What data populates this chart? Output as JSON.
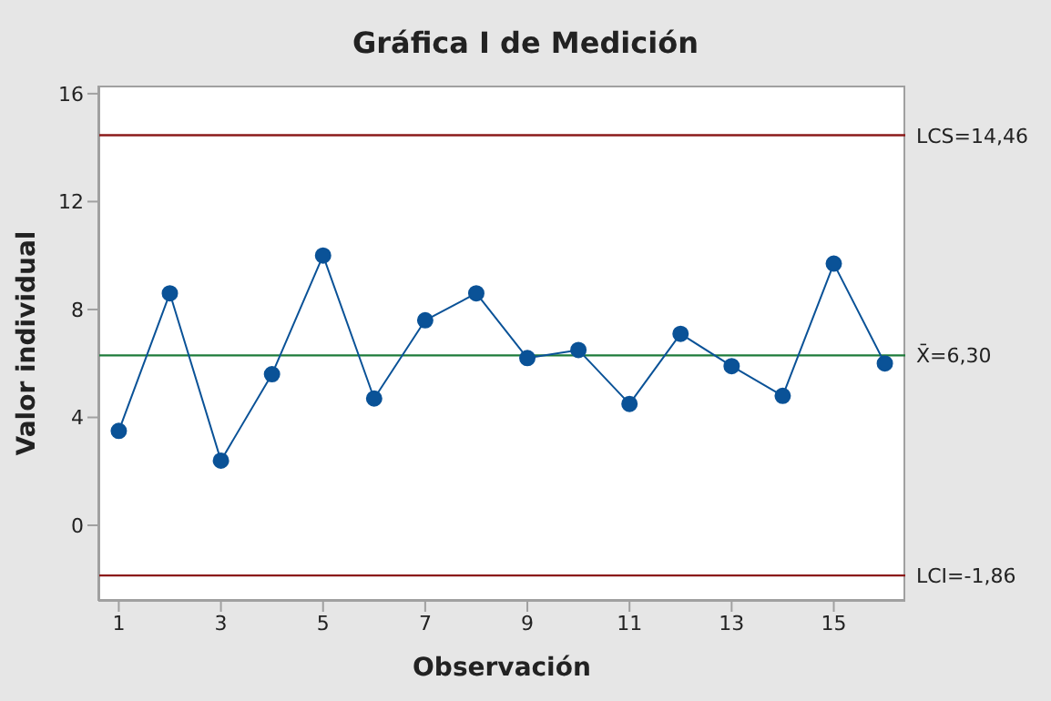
{
  "chart_data": {
    "type": "line",
    "title": "Gráfica I de Medición",
    "xlabel": "Observación",
    "ylabel": "Valor individual",
    "x": [
      1,
      2,
      3,
      4,
      5,
      6,
      7,
      8,
      9,
      10,
      11,
      12,
      13,
      14,
      15,
      16
    ],
    "series": [
      {
        "color": "#0a5297",
        "values": [
          3.5,
          8.6,
          2.4,
          5.6,
          10.0,
          4.7,
          7.6,
          8.6,
          6.2,
          6.5,
          4.5,
          7.1,
          5.9,
          4.8,
          9.7,
          6.0
        ]
      }
    ],
    "xlim": [
      0.6,
      16.4
    ],
    "xticks": [
      1,
      3,
      5,
      7,
      9,
      11,
      13,
      15
    ],
    "ylim": [
      -2.8,
      16.3
    ],
    "yticks": [
      0,
      4,
      8,
      12,
      16
    ],
    "marker": "circle",
    "line_style": "solid",
    "ref_lines": [
      {
        "axis": "y",
        "value": 14.46,
        "label": "LCS=14,46",
        "color": "#8b1a1a"
      },
      {
        "axis": "y",
        "value": 6.3,
        "label": "X̄=6,30",
        "color": "#1e7b3a"
      },
      {
        "axis": "y",
        "value": -1.86,
        "label": "LCI=-1,86",
        "color": "#8b1a1a"
      }
    ]
  }
}
